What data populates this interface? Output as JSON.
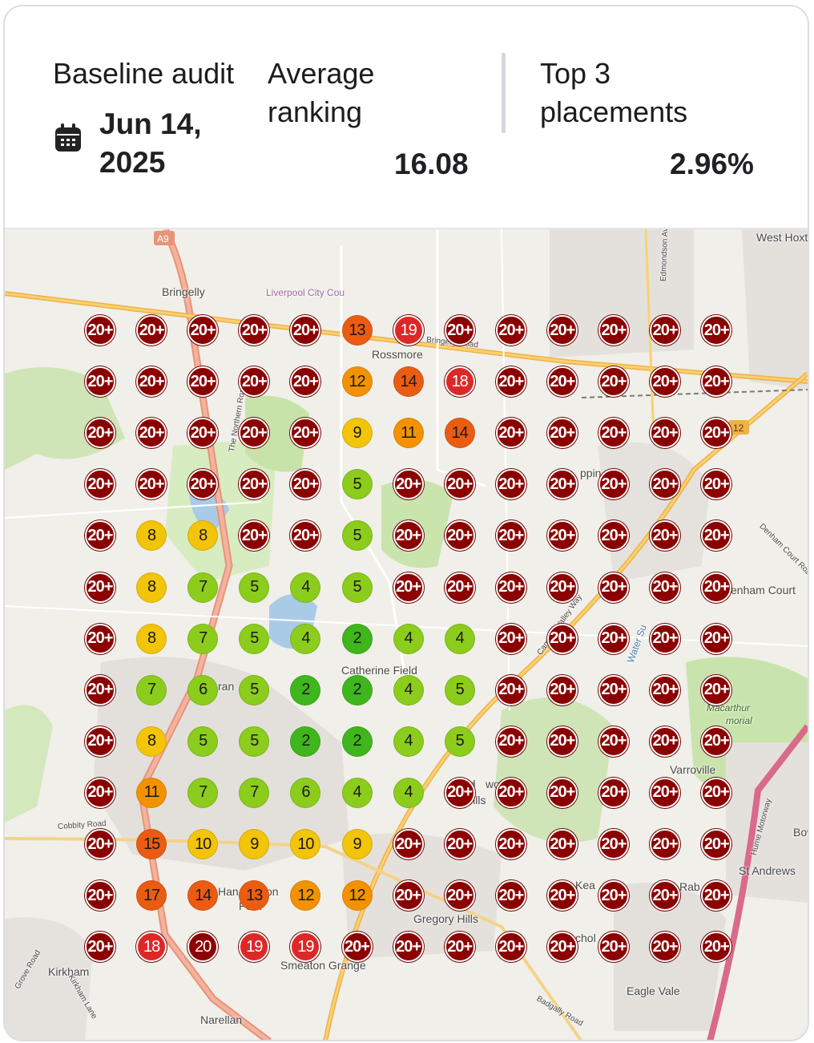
{
  "header": {
    "audit_label": "Baseline audit",
    "audit_date_line1": "Jun 14,",
    "audit_date_line2": "2025",
    "calendar_icon": "calendar-icon",
    "avg_label_line1": "Average",
    "avg_label_line2": "ranking",
    "avg_value": "16.08",
    "top3_label_line1": "Top 3",
    "top3_label_line2": "placements",
    "top3_value": "2.96%"
  },
  "map": {
    "places": [
      "Bringelly",
      "Rossmore",
      "Catherine Field",
      "Gregory Hills",
      "Smeaton Grange",
      "Narellan",
      "Kirkham",
      "Varroville",
      "St Andrews",
      "Eagle Vale",
      "West Hoxt",
      "enham Court",
      "Macarthur",
      "morial",
      "Bow",
      "Hills",
      "Liverpool City Cou",
      "Bringelly Road",
      "The Northern Road",
      "Camden Valley Way",
      "Cobbity Road",
      "Denham Court Road",
      "Edmondson Av",
      "Hume Motorway",
      "Kirkham Lane",
      "Grove Road",
      "Badgally Road",
      "A9",
      "12",
      "Kea",
      "Rab",
      "chol",
      "ppin",
      "ran",
      "Han",
      "on",
      "Park",
      "Gled",
      "woo",
      "Water Su"
    ],
    "rank_colors": {
      "top": "#3fb61c",
      "good": "#8ccc1c",
      "mid": "#f2c40a",
      "low": "#f39200",
      "poor": "#eb5c13",
      "bad": "#dd2828",
      "none": "#8b0000"
    },
    "grid": [
      [
        "20+",
        "20+",
        "20+",
        "20+",
        "20+",
        "13",
        "19",
        "20+",
        "20+",
        "20+",
        "20+",
        "20+",
        "20+"
      ],
      [
        "20+",
        "20+",
        "20+",
        "20+",
        "20+",
        "12",
        "14",
        "18",
        "20+",
        "20+",
        "20+",
        "20+",
        "20+"
      ],
      [
        "20+",
        "20+",
        "20+",
        "20+",
        "20+",
        "9",
        "11",
        "14",
        "20+",
        "20+",
        "20+",
        "20+",
        "20+"
      ],
      [
        "20+",
        "20+",
        "20+",
        "20+",
        "20+",
        "5",
        "20+",
        "20+",
        "20+",
        "20+",
        "20+",
        "20+",
        "20+"
      ],
      [
        "20+",
        "8",
        "8",
        "20+",
        "20+",
        "5",
        "20+",
        "20+",
        "20+",
        "20+",
        "20+",
        "20+",
        "20+"
      ],
      [
        "20+",
        "8",
        "7",
        "5",
        "4",
        "5",
        "20+",
        "20+",
        "20+",
        "20+",
        "20+",
        "20+",
        "20+"
      ],
      [
        "20+",
        "8",
        "7",
        "5",
        "4",
        "2",
        "4",
        "4",
        "20+",
        "20+",
        "20+",
        "20+",
        "20+"
      ],
      [
        "20+",
        "7",
        "6",
        "5",
        "2",
        "2",
        "4",
        "5",
        "20+",
        "20+",
        "20+",
        "20+",
        "20+"
      ],
      [
        "20+",
        "8",
        "5",
        "5",
        "2",
        "2",
        "4",
        "5",
        "20+",
        "20+",
        "20+",
        "20+",
        "20+"
      ],
      [
        "20+",
        "11",
        "7",
        "7",
        "6",
        "4",
        "4",
        "20+",
        "20+",
        "20+",
        "20+",
        "20+",
        "20+"
      ],
      [
        "20+",
        "15",
        "10",
        "9",
        "10",
        "9",
        "20+",
        "20+",
        "20+",
        "20+",
        "20+",
        "20+",
        "20+"
      ],
      [
        "20+",
        "17",
        "14",
        "13",
        "12",
        "12",
        "20+",
        "20+",
        "20+",
        "20+",
        "20+",
        "20+",
        "20+"
      ],
      [
        "20+",
        "18",
        "20",
        "19",
        "19",
        "20+",
        "20+",
        "20+",
        "20+",
        "20+",
        "20+",
        "20+",
        "20+"
      ]
    ]
  }
}
